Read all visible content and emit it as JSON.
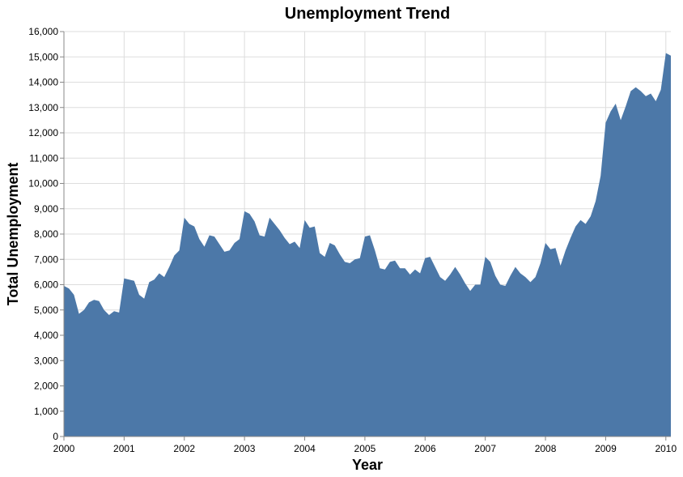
{
  "chart_data": {
    "type": "area",
    "title": "Unemployment Trend",
    "xlabel": "Year",
    "ylabel": "Total Unemployment",
    "color": "#4c78a8",
    "grid": true,
    "xlim": [
      "2000-01",
      "2010-02"
    ],
    "ylim": [
      0,
      16000
    ],
    "x_ticks": [
      "2000",
      "2001",
      "2002",
      "2003",
      "2004",
      "2005",
      "2006",
      "2007",
      "2008",
      "2009",
      "2010"
    ],
    "y_ticks": [
      "0",
      "1,000",
      "2,000",
      "3,000",
      "4,000",
      "5,000",
      "6,000",
      "7,000",
      "8,000",
      "9,000",
      "10,000",
      "11,000",
      "12,000",
      "13,000",
      "14,000",
      "15,000",
      "16,000"
    ],
    "series": [
      {
        "x": [
          "2000-01",
          "2000-02",
          "2000-03",
          "2000-04",
          "2000-05",
          "2000-06",
          "2000-07",
          "2000-08",
          "2000-09",
          "2000-10",
          "2000-11",
          "2000-12",
          "2001-01",
          "2001-02",
          "2001-03",
          "2001-04",
          "2001-05",
          "2001-06",
          "2001-07",
          "2001-08",
          "2001-09",
          "2001-10",
          "2001-11",
          "2001-12",
          "2002-01",
          "2002-02",
          "2002-03",
          "2002-04",
          "2002-05",
          "2002-06",
          "2002-07",
          "2002-08",
          "2002-09",
          "2002-10",
          "2002-11",
          "2002-12",
          "2003-01",
          "2003-02",
          "2003-03",
          "2003-04",
          "2003-05",
          "2003-06",
          "2003-07",
          "2003-08",
          "2003-09",
          "2003-10",
          "2003-11",
          "2003-12",
          "2004-01",
          "2004-02",
          "2004-03",
          "2004-04",
          "2004-05",
          "2004-06",
          "2004-07",
          "2004-08",
          "2004-09",
          "2004-10",
          "2004-11",
          "2004-12",
          "2005-01",
          "2005-02",
          "2005-03",
          "2005-04",
          "2005-05",
          "2005-06",
          "2005-07",
          "2005-08",
          "2005-09",
          "2005-10",
          "2005-11",
          "2005-12",
          "2006-01",
          "2006-02",
          "2006-03",
          "2006-04",
          "2006-05",
          "2006-06",
          "2006-07",
          "2006-08",
          "2006-09",
          "2006-10",
          "2006-11",
          "2006-12",
          "2007-01",
          "2007-02",
          "2007-03",
          "2007-04",
          "2007-05",
          "2007-06",
          "2007-07",
          "2007-08",
          "2007-09",
          "2007-10",
          "2007-11",
          "2007-12",
          "2008-01",
          "2008-02",
          "2008-03",
          "2008-04",
          "2008-05",
          "2008-06",
          "2008-07",
          "2008-08",
          "2008-09",
          "2008-10",
          "2008-11",
          "2008-12",
          "2009-01",
          "2009-02",
          "2009-03",
          "2009-04",
          "2009-05",
          "2009-06",
          "2009-07",
          "2009-08",
          "2009-09",
          "2009-10",
          "2009-11",
          "2009-12",
          "2010-01",
          "2010-02"
        ],
        "y": [
          5950,
          5850,
          5600,
          4850,
          5000,
          5300,
          5400,
          5350,
          5000,
          4800,
          4950,
          4900,
          6250,
          6200,
          6150,
          5600,
          5450,
          6100,
          6200,
          6450,
          6300,
          6700,
          7150,
          7350,
          8650,
          8400,
          8300,
          7800,
          7500,
          7950,
          7900,
          7600,
          7300,
          7350,
          7650,
          7800,
          8900,
          8800,
          8500,
          7950,
          7900,
          8650,
          8400,
          8150,
          7850,
          7600,
          7700,
          7450,
          8550,
          8250,
          8300,
          7250,
          7100,
          7650,
          7550,
          7200,
          6900,
          6850,
          7000,
          7050,
          7900,
          7950,
          7350,
          6650,
          6600,
          6900,
          6950,
          6650,
          6650,
          6400,
          6600,
          6450,
          7050,
          7100,
          6700,
          6300,
          6150,
          6400,
          6700,
          6400,
          6050,
          5750,
          6000,
          6000,
          7100,
          6900,
          6350,
          6000,
          5950,
          6350,
          6700,
          6450,
          6300,
          6100,
          6300,
          6850,
          7650,
          7400,
          7450,
          6750,
          7350,
          7850,
          8300,
          8550,
          8400,
          8700,
          9300,
          10300,
          12400,
          12850,
          13150,
          12500,
          13050,
          13650,
          13800,
          13650,
          13450,
          13550,
          13250,
          13700,
          15150,
          15050
        ]
      }
    ]
  }
}
